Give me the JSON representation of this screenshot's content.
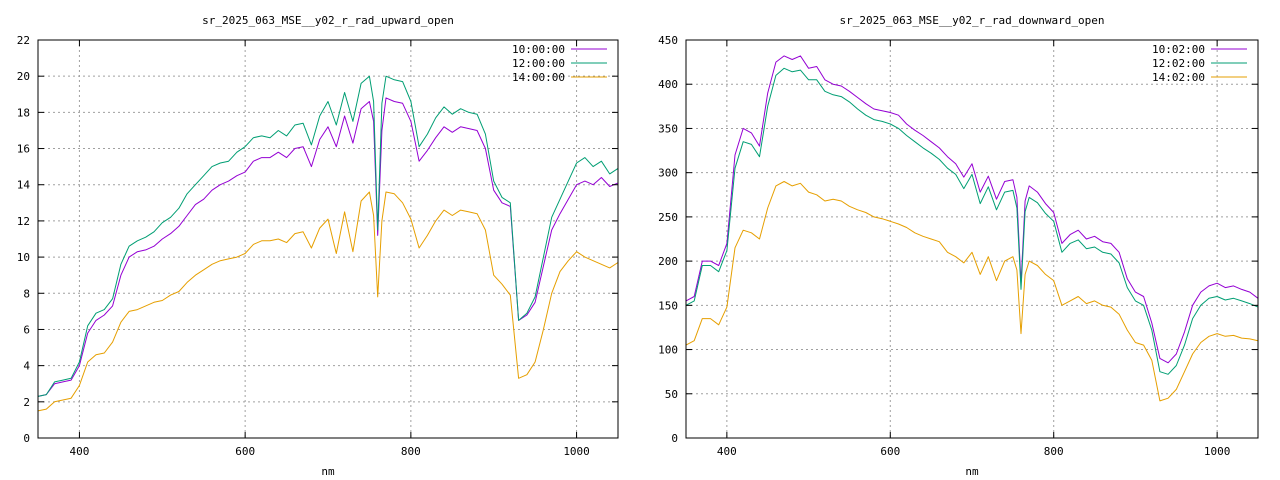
{
  "chart_data": [
    {
      "type": "line",
      "title": "sr_2025_063_MSE__y02_r_rad_upward_open",
      "xlabel": "nm",
      "ylabel": "",
      "xlim": [
        350,
        1050
      ],
      "ylim": [
        0,
        22
      ],
      "xticks": [
        400,
        600,
        800,
        1000
      ],
      "yticks": [
        0,
        2,
        4,
        6,
        8,
        10,
        12,
        14,
        16,
        18,
        20,
        22
      ],
      "grid": true,
      "legend_position": "top-right",
      "series": [
        {
          "name": "10:00:00",
          "color": "#9400d3",
          "x": [
            350,
            360,
            370,
            380,
            390,
            400,
            410,
            420,
            430,
            440,
            450,
            460,
            470,
            480,
            490,
            500,
            510,
            520,
            530,
            540,
            550,
            560,
            570,
            580,
            590,
            600,
            610,
            620,
            630,
            640,
            650,
            660,
            670,
            680,
            690,
            700,
            710,
            720,
            730,
            740,
            750,
            755,
            760,
            765,
            770,
            780,
            790,
            800,
            810,
            820,
            830,
            840,
            850,
            860,
            870,
            880,
            890,
            900,
            910,
            920,
            930,
            940,
            950,
            960,
            970,
            980,
            990,
            1000,
            1010,
            1020,
            1030,
            1040,
            1050
          ],
          "y": [
            2.3,
            2.4,
            3.0,
            3.1,
            3.2,
            4.0,
            5.8,
            6.5,
            6.8,
            7.3,
            9.0,
            10.0,
            10.3,
            10.4,
            10.6,
            11.0,
            11.3,
            11.7,
            12.3,
            12.9,
            13.2,
            13.7,
            14.0,
            14.2,
            14.5,
            14.7,
            15.3,
            15.5,
            15.5,
            15.8,
            15.5,
            16.0,
            16.1,
            15.0,
            16.5,
            17.2,
            16.1,
            17.8,
            16.3,
            18.2,
            18.6,
            17.5,
            11.2,
            17.0,
            18.8,
            18.6,
            18.5,
            17.5,
            15.3,
            15.9,
            16.6,
            17.2,
            16.9,
            17.2,
            17.1,
            17.0,
            16.0,
            13.7,
            13.0,
            12.8,
            6.5,
            6.8,
            7.5,
            9.5,
            11.5,
            12.4,
            13.2,
            14.0,
            14.2,
            14.0,
            14.4,
            13.9,
            14.1
          ]
        },
        {
          "name": "12:00:00",
          "color": "#009e73",
          "x": [
            350,
            360,
            370,
            380,
            390,
            400,
            410,
            420,
            430,
            440,
            450,
            460,
            470,
            480,
            490,
            500,
            510,
            520,
            530,
            540,
            550,
            560,
            570,
            580,
            590,
            600,
            610,
            620,
            630,
            640,
            650,
            660,
            670,
            680,
            690,
            700,
            710,
            720,
            730,
            740,
            750,
            755,
            760,
            765,
            770,
            780,
            790,
            800,
            810,
            820,
            830,
            840,
            850,
            860,
            870,
            880,
            890,
            900,
            910,
            920,
            930,
            940,
            950,
            960,
            970,
            980,
            990,
            1000,
            1010,
            1020,
            1030,
            1040,
            1050
          ],
          "y": [
            2.3,
            2.4,
            3.1,
            3.2,
            3.3,
            4.2,
            6.2,
            6.9,
            7.1,
            7.7,
            9.6,
            10.6,
            10.9,
            11.1,
            11.4,
            11.9,
            12.2,
            12.7,
            13.5,
            14.0,
            14.5,
            15.0,
            15.2,
            15.3,
            15.8,
            16.1,
            16.6,
            16.7,
            16.6,
            17.0,
            16.7,
            17.3,
            17.4,
            16.2,
            17.8,
            18.6,
            17.3,
            19.1,
            17.5,
            19.6,
            20.0,
            18.6,
            11.5,
            18.5,
            20.0,
            19.8,
            19.7,
            18.6,
            16.1,
            16.8,
            17.7,
            18.3,
            17.9,
            18.2,
            18.0,
            17.9,
            16.8,
            14.2,
            13.3,
            13.0,
            6.5,
            6.9,
            7.8,
            10.0,
            12.2,
            13.2,
            14.2,
            15.2,
            15.5,
            15.0,
            15.3,
            14.6,
            14.9
          ]
        },
        {
          "name": "14:00:00",
          "color": "#e69f00",
          "x": [
            350,
            360,
            370,
            380,
            390,
            400,
            410,
            420,
            430,
            440,
            450,
            460,
            470,
            480,
            490,
            500,
            510,
            520,
            530,
            540,
            550,
            560,
            570,
            580,
            590,
            600,
            610,
            620,
            630,
            640,
            650,
            660,
            670,
            680,
            690,
            700,
            710,
            720,
            730,
            740,
            750,
            755,
            760,
            765,
            770,
            780,
            790,
            800,
            810,
            820,
            830,
            840,
            850,
            860,
            870,
            880,
            890,
            900,
            910,
            920,
            930,
            940,
            950,
            960,
            970,
            980,
            990,
            1000,
            1010,
            1020,
            1030,
            1040,
            1050
          ],
          "y": [
            1.5,
            1.6,
            2.0,
            2.1,
            2.2,
            2.9,
            4.2,
            4.6,
            4.7,
            5.3,
            6.4,
            7.0,
            7.1,
            7.3,
            7.5,
            7.6,
            7.9,
            8.1,
            8.6,
            9.0,
            9.3,
            9.6,
            9.8,
            9.9,
            10.0,
            10.2,
            10.7,
            10.9,
            10.9,
            11.0,
            10.8,
            11.3,
            11.4,
            10.5,
            11.6,
            12.1,
            10.2,
            12.5,
            10.3,
            13.1,
            13.6,
            12.3,
            7.8,
            12.0,
            13.6,
            13.5,
            13.0,
            12.1,
            10.5,
            11.2,
            12.0,
            12.6,
            12.3,
            12.6,
            12.5,
            12.4,
            11.5,
            9.0,
            8.5,
            7.9,
            3.3,
            3.5,
            4.2,
            6.0,
            8.0,
            9.2,
            9.8,
            10.3,
            10.0,
            9.8,
            9.6,
            9.4,
            9.7
          ]
        }
      ]
    },
    {
      "type": "line",
      "title": "sr_2025_063_MSE__y02_r_rad_downward_open",
      "xlabel": "nm",
      "ylabel": "",
      "xlim": [
        350,
        1050
      ],
      "ylim": [
        0,
        450
      ],
      "xticks": [
        400,
        600,
        800,
        1000
      ],
      "yticks": [
        0,
        50,
        100,
        150,
        200,
        250,
        300,
        350,
        400,
        450
      ],
      "grid": true,
      "legend_position": "top-right",
      "series": [
        {
          "name": "10:02:00",
          "color": "#9400d3",
          "x": [
            350,
            360,
            370,
            380,
            390,
            400,
            410,
            420,
            430,
            440,
            450,
            460,
            470,
            480,
            490,
            500,
            510,
            520,
            530,
            540,
            550,
            560,
            570,
            580,
            590,
            600,
            610,
            620,
            630,
            640,
            650,
            660,
            670,
            680,
            690,
            700,
            710,
            720,
            730,
            740,
            750,
            755,
            760,
            765,
            770,
            780,
            790,
            800,
            810,
            820,
            830,
            840,
            850,
            860,
            870,
            880,
            890,
            900,
            910,
            920,
            930,
            940,
            950,
            960,
            970,
            980,
            990,
            1000,
            1010,
            1020,
            1030,
            1040,
            1050
          ],
          "y": [
            155,
            160,
            200,
            200,
            195,
            220,
            320,
            350,
            345,
            330,
            390,
            425,
            432,
            428,
            432,
            418,
            420,
            405,
            400,
            398,
            392,
            385,
            378,
            372,
            370,
            368,
            365,
            355,
            348,
            342,
            335,
            328,
            318,
            310,
            295,
            310,
            278,
            296,
            270,
            290,
            292,
            272,
            175,
            268,
            285,
            278,
            265,
            255,
            220,
            230,
            235,
            225,
            228,
            222,
            220,
            210,
            180,
            165,
            160,
            130,
            90,
            85,
            95,
            120,
            150,
            165,
            172,
            175,
            170,
            172,
            168,
            165,
            158
          ]
        },
        {
          "name": "12:02:00",
          "color": "#009e73",
          "x": [
            350,
            360,
            370,
            380,
            390,
            400,
            410,
            420,
            430,
            440,
            450,
            460,
            470,
            480,
            490,
            500,
            510,
            520,
            530,
            540,
            550,
            560,
            570,
            580,
            590,
            600,
            610,
            620,
            630,
            640,
            650,
            660,
            670,
            680,
            690,
            700,
            710,
            720,
            730,
            740,
            750,
            755,
            760,
            765,
            770,
            780,
            790,
            800,
            810,
            820,
            830,
            840,
            850,
            860,
            870,
            880,
            890,
            900,
            910,
            920,
            930,
            940,
            950,
            960,
            970,
            980,
            990,
            1000,
            1010,
            1020,
            1030,
            1040,
            1050
          ],
          "y": [
            150,
            155,
            195,
            195,
            188,
            212,
            305,
            335,
            332,
            318,
            375,
            410,
            418,
            414,
            416,
            405,
            405,
            392,
            388,
            386,
            380,
            372,
            365,
            360,
            358,
            355,
            350,
            342,
            335,
            328,
            322,
            315,
            305,
            298,
            282,
            298,
            265,
            284,
            258,
            278,
            280,
            260,
            168,
            256,
            272,
            266,
            254,
            245,
            210,
            220,
            224,
            214,
            216,
            210,
            208,
            198,
            170,
            155,
            150,
            122,
            75,
            72,
            82,
            105,
            135,
            150,
            158,
            160,
            156,
            158,
            155,
            152,
            148
          ]
        },
        {
          "name": "14:02:00",
          "color": "#e69f00",
          "x": [
            350,
            360,
            370,
            380,
            390,
            400,
            410,
            420,
            430,
            440,
            450,
            460,
            470,
            480,
            490,
            500,
            510,
            520,
            530,
            540,
            550,
            560,
            570,
            580,
            590,
            600,
            610,
            620,
            630,
            640,
            650,
            660,
            670,
            680,
            690,
            700,
            710,
            720,
            730,
            740,
            750,
            755,
            760,
            765,
            770,
            780,
            790,
            800,
            810,
            820,
            830,
            840,
            850,
            860,
            870,
            880,
            890,
            900,
            910,
            920,
            930,
            940,
            950,
            960,
            970,
            980,
            990,
            1000,
            1010,
            1020,
            1030,
            1040,
            1050
          ],
          "y": [
            105,
            110,
            135,
            135,
            128,
            148,
            215,
            235,
            232,
            225,
            260,
            285,
            290,
            285,
            288,
            278,
            275,
            268,
            270,
            268,
            262,
            258,
            255,
            250,
            248,
            245,
            242,
            238,
            232,
            228,
            225,
            222,
            210,
            205,
            198,
            210,
            185,
            205,
            178,
            200,
            205,
            190,
            118,
            185,
            200,
            195,
            185,
            178,
            150,
            155,
            160,
            152,
            155,
            150,
            148,
            140,
            122,
            108,
            105,
            88,
            42,
            45,
            55,
            75,
            95,
            108,
            115,
            118,
            115,
            116,
            113,
            112,
            110
          ]
        }
      ]
    }
  ]
}
